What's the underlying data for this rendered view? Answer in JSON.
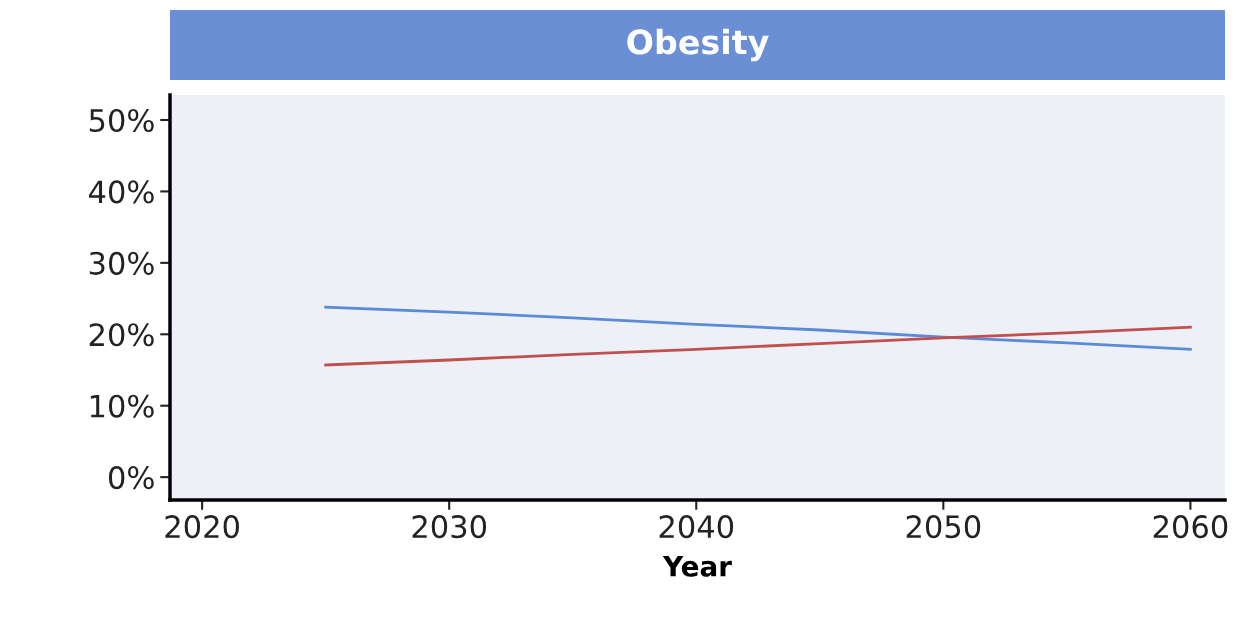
{
  "chart_data": {
    "type": "line",
    "title": "Obesity",
    "xlabel": "Year",
    "x": [
      2025,
      2030,
      2035,
      2040,
      2045,
      2050,
      2055,
      2060
    ],
    "series": [
      {
        "color": "#5b8ad6",
        "values": [
          23.8,
          23.1,
          22.3,
          21.4,
          20.6,
          19.6,
          18.8,
          17.9
        ]
      },
      {
        "color": "#c0504d",
        "values": [
          15.7,
          16.4,
          17.2,
          17.9,
          18.7,
          19.5,
          20.2,
          21.0
        ]
      }
    ],
    "xlim": [
      2018.7,
      2061.4
    ],
    "ylim": [
      -3.2,
      53.5
    ],
    "xticks": [
      2020,
      2030,
      2040,
      2050,
      2060
    ],
    "yticks": [
      {
        "value": 0,
        "label": "0%"
      },
      {
        "value": 10,
        "label": "10%"
      },
      {
        "value": 20,
        "label": "20%"
      },
      {
        "value": 30,
        "label": "30%"
      },
      {
        "value": 40,
        "label": "40%"
      },
      {
        "value": 50,
        "label": "50%"
      }
    ],
    "grid": false,
    "legend": false,
    "marker": "none",
    "line_style": "solid"
  }
}
